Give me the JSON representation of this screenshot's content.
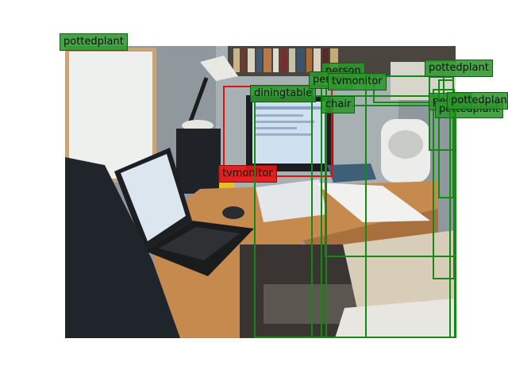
{
  "image": {
    "scene": "desk-with-laptop-and-monitor"
  },
  "colors": {
    "detection_box": "#138a13",
    "detection_label_bg": "#2c962c",
    "highlight_box": "#e01313",
    "highlight_label_bg": "#e21818"
  },
  "detections": [
    {
      "label": "pottedplant"
    },
    {
      "label": "tvmonitor"
    },
    {
      "label": "diningtable"
    },
    {
      "label": "person"
    },
    {
      "label": "person"
    },
    {
      "label": "tvmonitor"
    },
    {
      "label": "chair"
    },
    {
      "label": "pottedplant"
    },
    {
      "label": "person"
    },
    {
      "label": "pottedplant"
    },
    {
      "label": "pottedplant"
    }
  ]
}
